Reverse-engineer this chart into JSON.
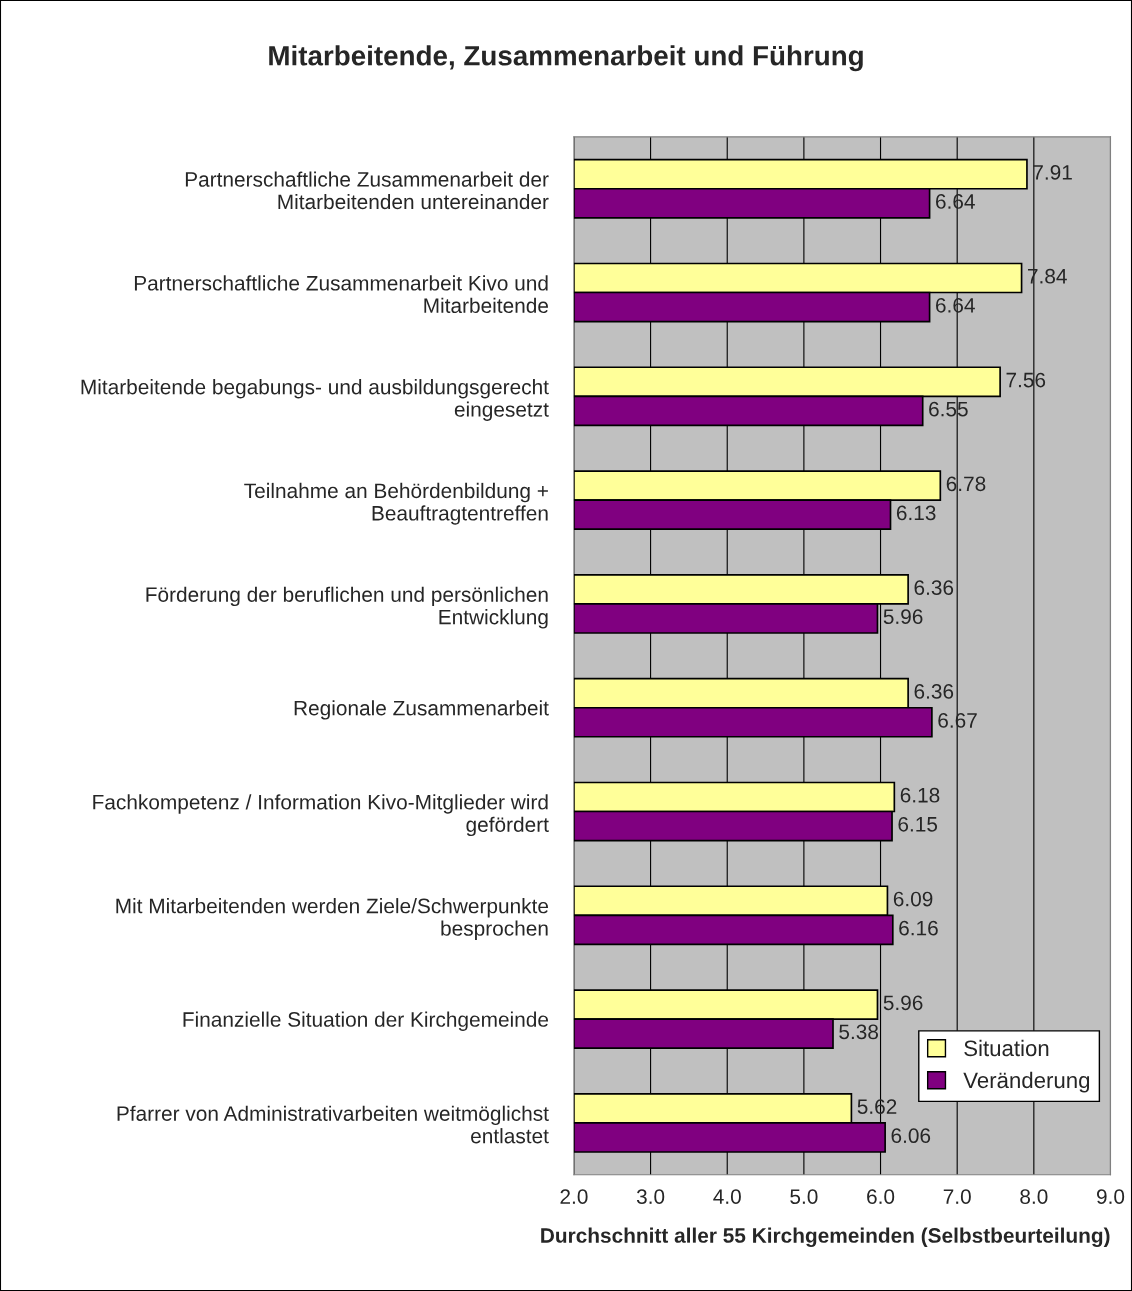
{
  "chart_data": {
    "type": "bar",
    "orientation": "horizontal",
    "title": "Mitarbeitende, Zusammenarbeit und Führung",
    "xlabel": "Durchschnitt aller 55 Kirchgemeinden (Selbstbeurteilung)",
    "categories": [
      "Partnerschaftliche Zusammenarbeit der\nMitarbeitenden untereinander",
      "Partnerschaftliche Zusammenarbeit Kivo und\nMitarbeitende",
      "Mitarbeitende begabungs- und ausbildungsgerecht\neingesetzt",
      "Teilnahme an Behördenbildung +\nBeauftragtentreffen",
      "Förderung der beruflichen und persönlichen\nEntwicklung",
      "Regionale Zusammenarbeit",
      "Fachkompetenz / Information Kivo-Mitglieder wird\ngefördert",
      "Mit Mitarbeitenden werden Ziele/Schwerpunkte\nbesprochen",
      "Finanzielle Situation der Kirchgemeinde",
      "Pfarrer von Administrativarbeiten weitmöglichst\nentlastet"
    ],
    "series": [
      {
        "name": "Situation",
        "color": "#ffff99",
        "values": [
          7.91,
          7.84,
          7.56,
          6.78,
          6.36,
          6.36,
          6.18,
          6.09,
          5.96,
          5.62
        ]
      },
      {
        "name": "Veränderung",
        "color": "#800080",
        "values": [
          6.64,
          6.64,
          6.55,
          6.13,
          5.96,
          6.67,
          6.15,
          6.16,
          5.38,
          6.06
        ]
      }
    ],
    "xlim": [
      2.0,
      9.0
    ],
    "xticks": [
      {
        "value": 2,
        "label": "2.0"
      },
      {
        "value": 3,
        "label": "3.0"
      },
      {
        "value": 4,
        "label": "4.0"
      },
      {
        "value": 5,
        "label": "5.0"
      },
      {
        "value": 6,
        "label": "6.0"
      },
      {
        "value": 7,
        "label": "7.0"
      },
      {
        "value": 8,
        "label": "8.0"
      },
      {
        "value": 9,
        "label": "9.0"
      }
    ],
    "grid": "x",
    "legend": "bottom right",
    "data_labels": true
  }
}
